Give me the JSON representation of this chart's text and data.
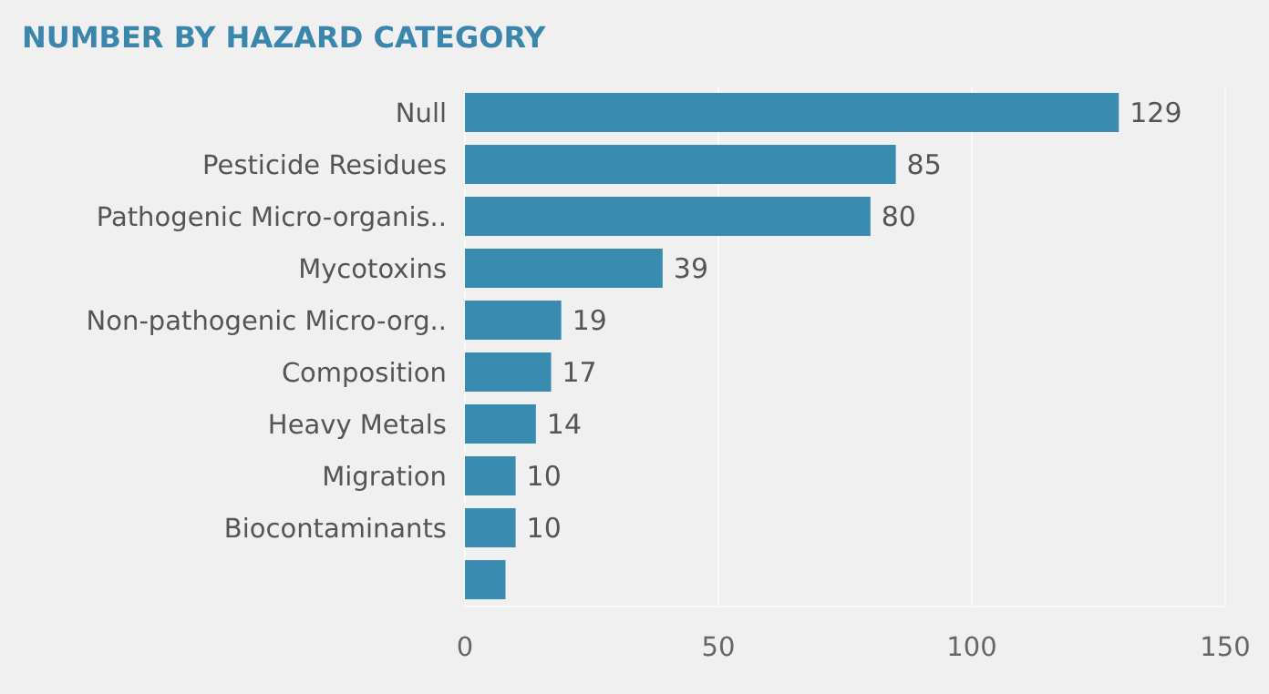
{
  "chart_data": {
    "type": "bar",
    "orientation": "horizontal",
    "title": "NUMBER BY HAZARD CATEGORY",
    "categories": [
      "Null",
      "Pesticide Residues",
      "Pathogenic Micro-organis..",
      "Mycotoxins",
      "Non-pathogenic Micro-org..",
      "Composition",
      "Heavy Metals",
      "Migration",
      "Biocontaminants",
      null
    ],
    "values": [
      129,
      85,
      80,
      39,
      19,
      17,
      14,
      10,
      10,
      8
    ],
    "value_labels": [
      "129",
      "85",
      "80",
      "39",
      "19",
      "17",
      "14",
      "10",
      "10",
      null
    ],
    "color": "#3a8bb0",
    "xlim": [
      0,
      150
    ],
    "xticks": [
      0,
      50,
      100,
      150
    ],
    "grid": "x"
  }
}
